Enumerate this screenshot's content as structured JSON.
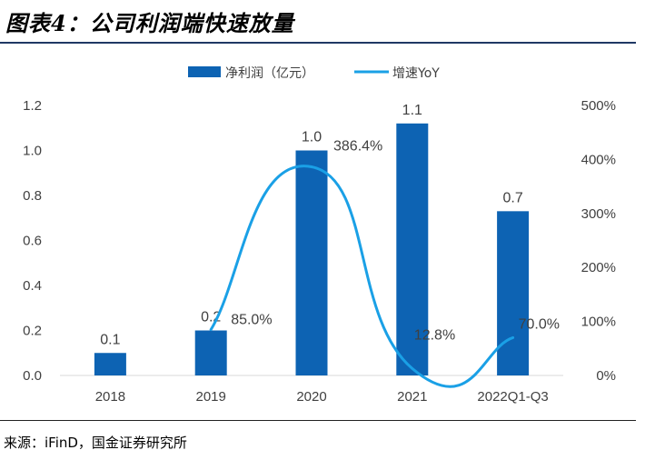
{
  "title": "图表4：公司利润端快速放量",
  "source": "来源：iFinD，国金证券研究所",
  "chart_data": {
    "type": "bar",
    "categories": [
      "2018",
      "2019",
      "2020",
      "2021",
      "2022Q1-Q3"
    ],
    "series": [
      {
        "name": "净利润（亿元）",
        "type": "bar",
        "axis": "left",
        "color": "#0d63b3",
        "values": [
          0.1,
          0.2,
          1.0,
          1.12,
          0.73
        ],
        "labels": [
          "0.1",
          "0.2",
          "1.0",
          "1.1",
          "0.7"
        ]
      },
      {
        "name": "增速YoY",
        "type": "line",
        "axis": "right",
        "color": "#1aa0e6",
        "values": [
          null,
          85.0,
          386.4,
          12.8,
          70.0
        ],
        "labels": [
          "",
          "85.0%",
          "386.4%",
          "12.8%",
          "70.0%"
        ]
      }
    ],
    "y_left": {
      "min": 0,
      "max": 1.2,
      "ticks": [
        "0.0",
        "0.2",
        "0.4",
        "0.6",
        "0.8",
        "1.0",
        "1.2"
      ]
    },
    "y_right": {
      "min": 0,
      "max": 500,
      "ticks": [
        "0%",
        "100%",
        "200%",
        "300%",
        "400%",
        "500%"
      ]
    },
    "grid": false,
    "legend_position": "top-center"
  }
}
